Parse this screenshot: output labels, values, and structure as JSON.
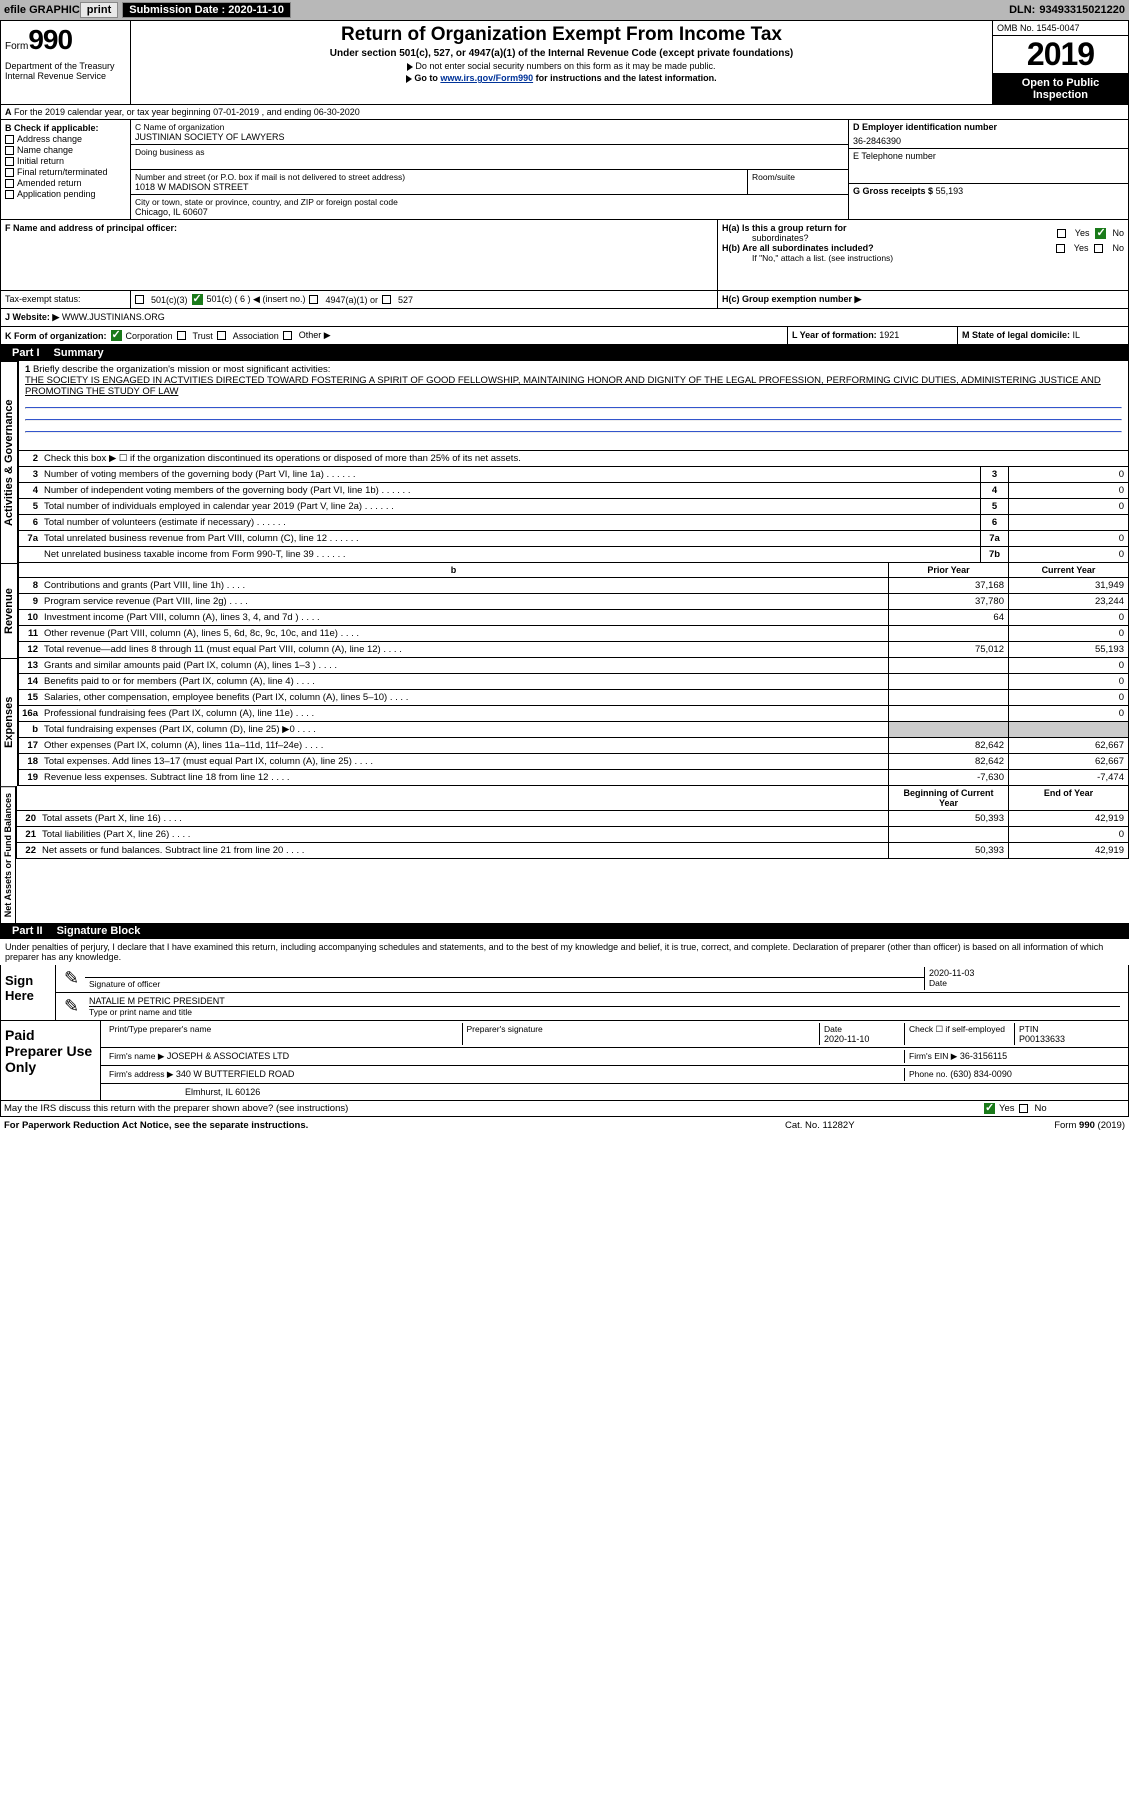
{
  "topbar": {
    "efile": "efile GRAPHIC",
    "print": "print",
    "sub_label": "Submission Date :",
    "sub_date": "2020-11-10",
    "dln_label": "DLN:",
    "dln": "93493315021220"
  },
  "header": {
    "form_word": "Form",
    "form_num": "990",
    "title": "Return of Organization Exempt From Income Tax",
    "sub1": "Under section 501(c), 527, or 4947(a)(1) of the Internal Revenue Code (except private foundations)",
    "sub2": "Do not enter social security numbers on this form as it may be made public.",
    "goto_pre": "Go to ",
    "goto_link": "www.irs.gov/Form990",
    "goto_post": " for instructions and the latest information.",
    "omb": "OMB No. 1545-0047",
    "year": "2019",
    "otp1": "Open to Public",
    "otp2": "Inspection",
    "dept1": "Department of the Treasury",
    "dept2": "Internal Revenue Service"
  },
  "row_a": "For the 2019 calendar year, or tax year beginning 07-01-2019    , and ending 06-30-2020",
  "section_b": {
    "hdr": "B Check if applicable:",
    "items": [
      "Address change",
      "Name change",
      "Initial return",
      "Final return/terminated",
      "Amended return",
      "Application pending"
    ]
  },
  "section_c": {
    "name_lbl": "C Name of organization",
    "name": "JUSTINIAN SOCIETY OF LAWYERS",
    "dba": "Doing business as",
    "addr_lbl": "Number and street (or P.O. box if mail is not delivered to street address)",
    "addr": "1018 W MADISON STREET",
    "room_lbl": "Room/suite",
    "city_lbl": "City or town, state or province, country, and ZIP or foreign postal code",
    "city": "Chicago, IL  60607"
  },
  "section_d": {
    "lbl": "D Employer identification number",
    "val": "36-2846390"
  },
  "section_e": {
    "lbl": "E Telephone number"
  },
  "section_f": {
    "lbl": "F  Name and address of principal officer:"
  },
  "section_g": {
    "lbl": "G Gross receipts $",
    "val": "55,193"
  },
  "section_h": {
    "ha": "H(a)  Is this a group return for",
    "ha2": "subordinates?",
    "hb": "H(b)  Are all subordinates included?",
    "hb_note": "If \"No,\" attach a list. (see instructions)",
    "hc": "H(c)  Group exemption number ▶",
    "yes": "Yes",
    "no": "No"
  },
  "section_i": {
    "lbl": "Tax-exempt status:",
    "o1": "501(c)(3)",
    "o2": "501(c) ( 6 ) ◀ (insert no.)",
    "o3": "4947(a)(1) or",
    "o4": "527"
  },
  "section_j": {
    "lbl": "J",
    "web": "Website: ▶",
    "url": "WWW.JUSTINIANS.ORG"
  },
  "section_k": {
    "lbl": "K Form of organization:",
    "o1": "Corporation",
    "o2": "Trust",
    "o3": "Association",
    "o4": "Other ▶"
  },
  "section_l": {
    "lbl": "L Year of formation:",
    "val": "1921"
  },
  "section_m": {
    "lbl": "M State of legal domicile:",
    "val": "IL"
  },
  "part1": {
    "hdr_part": "Part I",
    "hdr_title": "Summary",
    "line1_lbl": "Briefly describe the organization's mission or most significant activities:",
    "line1_text": "THE SOCIETY IS ENGAGED IN ACTVITIES DIRECTED TOWARD FOSTERING A SPIRIT OF GOOD FELLOWSHIP, MAINTAINING HONOR AND DIGNITY OF THE LEGAL PROFESSION, PERFORMING CIVIC DUTIES, ADMINISTERING JUSTICE AND PROMOTING THE STUDY OF LAW",
    "line2": "Check this box ▶ ☐  if the organization discontinued its operations or disposed of more than 25% of its net assets.",
    "sidebars": {
      "ag": "Activities & Governance",
      "rev": "Revenue",
      "exp": "Expenses",
      "na": "Net Assets or\nFund Balances"
    },
    "col_py": "Prior Year",
    "col_cy": "Current Year",
    "col_bcy": "Beginning of Current Year",
    "col_eoy": "End of Year",
    "rows_ag": [
      {
        "n": "3",
        "d": "Number of voting members of the governing body (Part VI, line 1a)",
        "box": "3",
        "v": "0"
      },
      {
        "n": "4",
        "d": "Number of independent voting members of the governing body (Part VI, line 1b)",
        "box": "4",
        "v": "0"
      },
      {
        "n": "5",
        "d": "Total number of individuals employed in calendar year 2019 (Part V, line 2a)",
        "box": "5",
        "v": "0"
      },
      {
        "n": "6",
        "d": "Total number of volunteers (estimate if necessary)",
        "box": "6",
        "v": ""
      },
      {
        "n": "7a",
        "d": "Total unrelated business revenue from Part VIII, column (C), line 12",
        "box": "7a",
        "v": "0"
      },
      {
        "n": "",
        "d": "Net unrelated business taxable income from Form 990-T, line 39",
        "box": "7b",
        "v": "0"
      }
    ],
    "rows_rev": [
      {
        "n": "8",
        "d": "Contributions and grants (Part VIII, line 1h)",
        "py": "37,168",
        "cy": "31,949"
      },
      {
        "n": "9",
        "d": "Program service revenue (Part VIII, line 2g)",
        "py": "37,780",
        "cy": "23,244"
      },
      {
        "n": "10",
        "d": "Investment income (Part VIII, column (A), lines 3, 4, and 7d )",
        "py": "64",
        "cy": "0"
      },
      {
        "n": "11",
        "d": "Other revenue (Part VIII, column (A), lines 5, 6d, 8c, 9c, 10c, and 11e)",
        "py": "",
        "cy": "0"
      },
      {
        "n": "12",
        "d": "Total revenue—add lines 8 through 11 (must equal Part VIII, column (A), line 12)",
        "py": "75,012",
        "cy": "55,193"
      }
    ],
    "rows_exp": [
      {
        "n": "13",
        "d": "Grants and similar amounts paid (Part IX, column (A), lines 1–3 )",
        "py": "",
        "cy": "0"
      },
      {
        "n": "14",
        "d": "Benefits paid to or for members (Part IX, column (A), line 4)",
        "py": "",
        "cy": "0"
      },
      {
        "n": "15",
        "d": "Salaries, other compensation, employee benefits (Part IX, column (A), lines 5–10)",
        "py": "",
        "cy": "0"
      },
      {
        "n": "16a",
        "d": "Professional fundraising fees (Part IX, column (A), line 11e)",
        "py": "",
        "cy": "0"
      },
      {
        "n": "b",
        "d": "Total fundraising expenses (Part IX, column (D), line 25) ▶0",
        "py": "shade",
        "cy": "shade"
      },
      {
        "n": "17",
        "d": "Other expenses (Part IX, column (A), lines 11a–11d, 11f–24e)",
        "py": "82,642",
        "cy": "62,667"
      },
      {
        "n": "18",
        "d": "Total expenses. Add lines 13–17 (must equal Part IX, column (A), line 25)",
        "py": "82,642",
        "cy": "62,667"
      },
      {
        "n": "19",
        "d": "Revenue less expenses. Subtract line 18 from line 12",
        "py": "-7,630",
        "cy": "-7,474"
      }
    ],
    "rows_na": [
      {
        "n": "20",
        "d": "Total assets (Part X, line 16)",
        "py": "50,393",
        "cy": "42,919"
      },
      {
        "n": "21",
        "d": "Total liabilities (Part X, line 26)",
        "py": "",
        "cy": "0"
      },
      {
        "n": "22",
        "d": "Net assets or fund balances. Subtract line 21 from line 20",
        "py": "50,393",
        "cy": "42,919"
      }
    ]
  },
  "part2": {
    "hdr_part": "Part II",
    "hdr_title": "Signature Block",
    "declare": "Under penalties of perjury, I declare that I have examined this return, including accompanying schedules and statements, and to the best of my knowledge and belief, it is true, correct, and complete. Declaration of preparer (other than officer) is based on all information of which preparer has any knowledge.",
    "sign_here": "Sign Here",
    "sig_officer_lbl": "Signature of officer",
    "date_lbl": "Date",
    "date_val": "2020-11-03",
    "name_title": "NATALIE M PETRIC  PRESIDENT",
    "name_lbl": "Type or print name and title",
    "paid": "Paid Preparer Use Only",
    "prep_name_lbl": "Print/Type preparer's name",
    "prep_sig_lbl": "Preparer's signature",
    "prep_date_lbl": "Date",
    "prep_date": "2020-11-10",
    "check_lbl": "Check ☐ if self-employed",
    "ptin_lbl": "PTIN",
    "ptin": "P00133633",
    "firm_name_lbl": "Firm's name   ▶",
    "firm_name": "JOSEPH & ASSOCIATES LTD",
    "firm_ein_lbl": "Firm's EIN ▶",
    "firm_ein": "36-3156115",
    "firm_addr_lbl": "Firm's address ▶",
    "firm_addr1": "340 W BUTTERFIELD ROAD",
    "firm_addr2": "Elmhurst, IL  60126",
    "phone_lbl": "Phone no.",
    "phone": "(630) 834-0090",
    "discuss": "May the IRS discuss this return with the preparer shown above? (see instructions)",
    "yes": "Yes",
    "no": "No"
  },
  "footer": {
    "pra": "For Paperwork Reduction Act Notice, see the separate instructions.",
    "cat": "Cat. No. 11282Y",
    "form": "Form 990 (2019)"
  }
}
